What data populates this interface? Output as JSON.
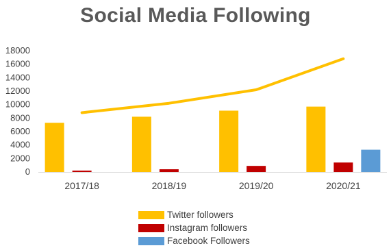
{
  "chart_data": {
    "type": "bar",
    "title": "Social Media Following",
    "categories": [
      "2017/18",
      "2018/19",
      "2019/20",
      "2020/21"
    ],
    "ylim": [
      0,
      18000
    ],
    "yticks": [
      0,
      2000,
      4000,
      6000,
      8000,
      10000,
      12000,
      14000,
      16000,
      18000
    ],
    "grid": false,
    "legend_position": "bottom",
    "series": [
      {
        "name": "Twitter followers",
        "type": "bar",
        "color": "#FFC000",
        "values": [
          7300,
          8200,
          9100,
          9700
        ]
      },
      {
        "name": "Instagram followers",
        "type": "bar",
        "color": "#C00000",
        "values": [
          200,
          400,
          900,
          1400
        ]
      },
      {
        "name": "Facebook Followers",
        "type": "bar",
        "color": "#5B9BD5",
        "values": [
          0,
          0,
          0,
          3300
        ]
      },
      {
        "name": "Twitter followers",
        "type": "line",
        "color": "#FFC000",
        "values": [
          8800,
          10200,
          12200,
          16800
        ],
        "legend": false
      }
    ]
  }
}
